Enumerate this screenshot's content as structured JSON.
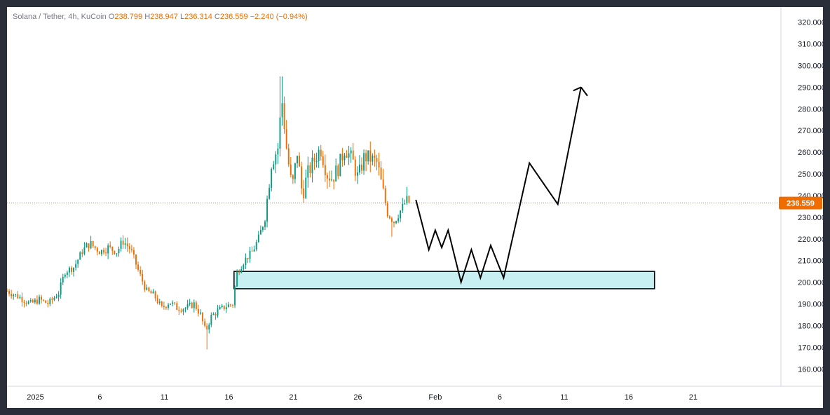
{
  "header": {
    "symbol": "Solana / Tether, 4h, KuCoin",
    "open_label": "O",
    "open": "238.799",
    "high_label": "H",
    "high": "238.947",
    "low_label": "L",
    "low": "236.314",
    "close_label": "C",
    "close": "236.559",
    "change": "−2.240 (−0.94%)"
  },
  "colors": {
    "up": "#089981",
    "down": "#ef6c00",
    "zone_fill": "#c8f0f3",
    "zone_border": "#000000",
    "projection": "#000000",
    "last_price": "#ef6c00",
    "axis_text": "#131722",
    "background": "#ffffff",
    "border": "#2a2e39"
  },
  "chart_data": {
    "type": "candlestick",
    "title": "Solana / Tether, 4h, KuCoin",
    "ylim": [
      152,
      327
    ],
    "y_ticks": [
      "160.000",
      "170.000",
      "180.000",
      "190.000",
      "200.000",
      "210.000",
      "220.000",
      "230.000",
      "240.000",
      "250.000",
      "260.000",
      "270.000",
      "280.000",
      "290.000",
      "300.000",
      "310.000",
      "320.000"
    ],
    "x_ticks": [
      {
        "label": "2025",
        "day": 1
      },
      {
        "label": "6",
        "day": 6
      },
      {
        "label": "11",
        "day": 11
      },
      {
        "label": "16",
        "day": 16
      },
      {
        "label": "21",
        "day": 21
      },
      {
        "label": "26",
        "day": 26
      },
      {
        "label": "Feb",
        "day": 32
      },
      {
        "label": "6",
        "day": 37
      },
      {
        "label": "11",
        "day": 42
      },
      {
        "label": "16",
        "day": 47
      },
      {
        "label": "21",
        "day": 52
      }
    ],
    "x_range_days": [
      -1.2,
      58.8
    ],
    "last_price": 236.559,
    "last_price_label": "236.559",
    "price_path_keypoints": [
      [
        -1.2,
        196
      ],
      [
        -0.2,
        193
      ],
      [
        0.6,
        190
      ],
      [
        1.3,
        192
      ],
      [
        2.0,
        190
      ],
      [
        2.8,
        195
      ],
      [
        3.3,
        205
      ],
      [
        4.0,
        207
      ],
      [
        4.6,
        214
      ],
      [
        5.2,
        218
      ],
      [
        6.0,
        214
      ],
      [
        6.6,
        216
      ],
      [
        7.3,
        214
      ],
      [
        7.8,
        219
      ],
      [
        8.4,
        215
      ],
      [
        9.0,
        205
      ],
      [
        9.6,
        196
      ],
      [
        10.2,
        194
      ],
      [
        10.8,
        188
      ],
      [
        11.4,
        191
      ],
      [
        12.0,
        188
      ],
      [
        12.6,
        188
      ],
      [
        13.3,
        190
      ],
      [
        13.8,
        185
      ],
      [
        14.2,
        177
      ],
      [
        14.6,
        184
      ],
      [
        15.2,
        187
      ],
      [
        15.8,
        189
      ],
      [
        16.3,
        190
      ],
      [
        16.6,
        204
      ],
      [
        17.2,
        210
      ],
      [
        17.8,
        214
      ],
      [
        18.3,
        220
      ],
      [
        18.8,
        230
      ],
      [
        19.3,
        255
      ],
      [
        19.8,
        262
      ],
      [
        20.1,
        285
      ],
      [
        20.5,
        260
      ],
      [
        20.9,
        243
      ],
      [
        21.3,
        260
      ],
      [
        21.7,
        240
      ],
      [
        22.1,
        250
      ],
      [
        22.6,
        256
      ],
      [
        23.1,
        262
      ],
      [
        23.6,
        250
      ],
      [
        24.0,
        248
      ],
      [
        24.5,
        253
      ],
      [
        25.0,
        262
      ],
      [
        25.6,
        256
      ],
      [
        26.0,
        248
      ],
      [
        26.5,
        258
      ],
      [
        27.0,
        257
      ],
      [
        27.5,
        255
      ],
      [
        27.9,
        243
      ],
      [
        28.3,
        232
      ],
      [
        28.8,
        228
      ],
      [
        29.3,
        233
      ],
      [
        29.8,
        238
      ],
      [
        30.0,
        236.559
      ]
    ],
    "zone": {
      "y_low": 197,
      "y_high": 205,
      "x_start_day": 16.4,
      "x_end_day": 49.0
    },
    "projection_path": [
      [
        30.5,
        238
      ],
      [
        31.5,
        215
      ],
      [
        32.0,
        224
      ],
      [
        32.5,
        216
      ],
      [
        33.0,
        224
      ],
      [
        34.0,
        200
      ],
      [
        34.8,
        215
      ],
      [
        35.5,
        202
      ],
      [
        36.3,
        217
      ],
      [
        37.3,
        202
      ],
      [
        39.3,
        255
      ],
      [
        41.5,
        236
      ],
      [
        43.3,
        290
      ]
    ],
    "projection_arrow_end": [
      43.8,
      286
    ]
  }
}
